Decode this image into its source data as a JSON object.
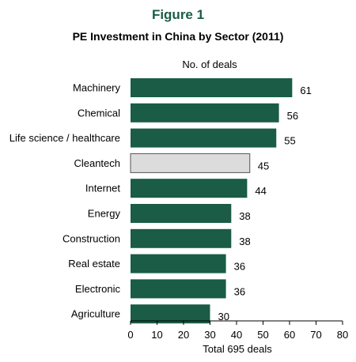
{
  "figure_label": "Figure 1",
  "colors": {
    "figure_label": "#1a5c45",
    "bar": "#1a5c45",
    "highlight_bar": "#dcdcdc",
    "axis": "#000000",
    "text": "#000000"
  },
  "chart_data": {
    "type": "bar",
    "orientation": "horizontal",
    "title": "PE Investment in China by Sector (2011)",
    "value_axis_label_top": "No. of deals",
    "xlabel": "Total 695 deals",
    "categories": [
      "Machinery",
      "Chemical",
      "Life science / healthcare",
      "Cleantech",
      "Internet",
      "Energy",
      "Construction",
      "Real estate",
      "Electronic",
      "Agriculture"
    ],
    "values": [
      61,
      56,
      55,
      45,
      44,
      38,
      38,
      36,
      36,
      30
    ],
    "highlighted_category": "Cleantech",
    "xlim": [
      0,
      80
    ],
    "xticks": [
      "0",
      "10",
      "20",
      "30",
      "40",
      "50",
      "60",
      "70",
      "80"
    ],
    "grid": false,
    "legend": "none"
  }
}
